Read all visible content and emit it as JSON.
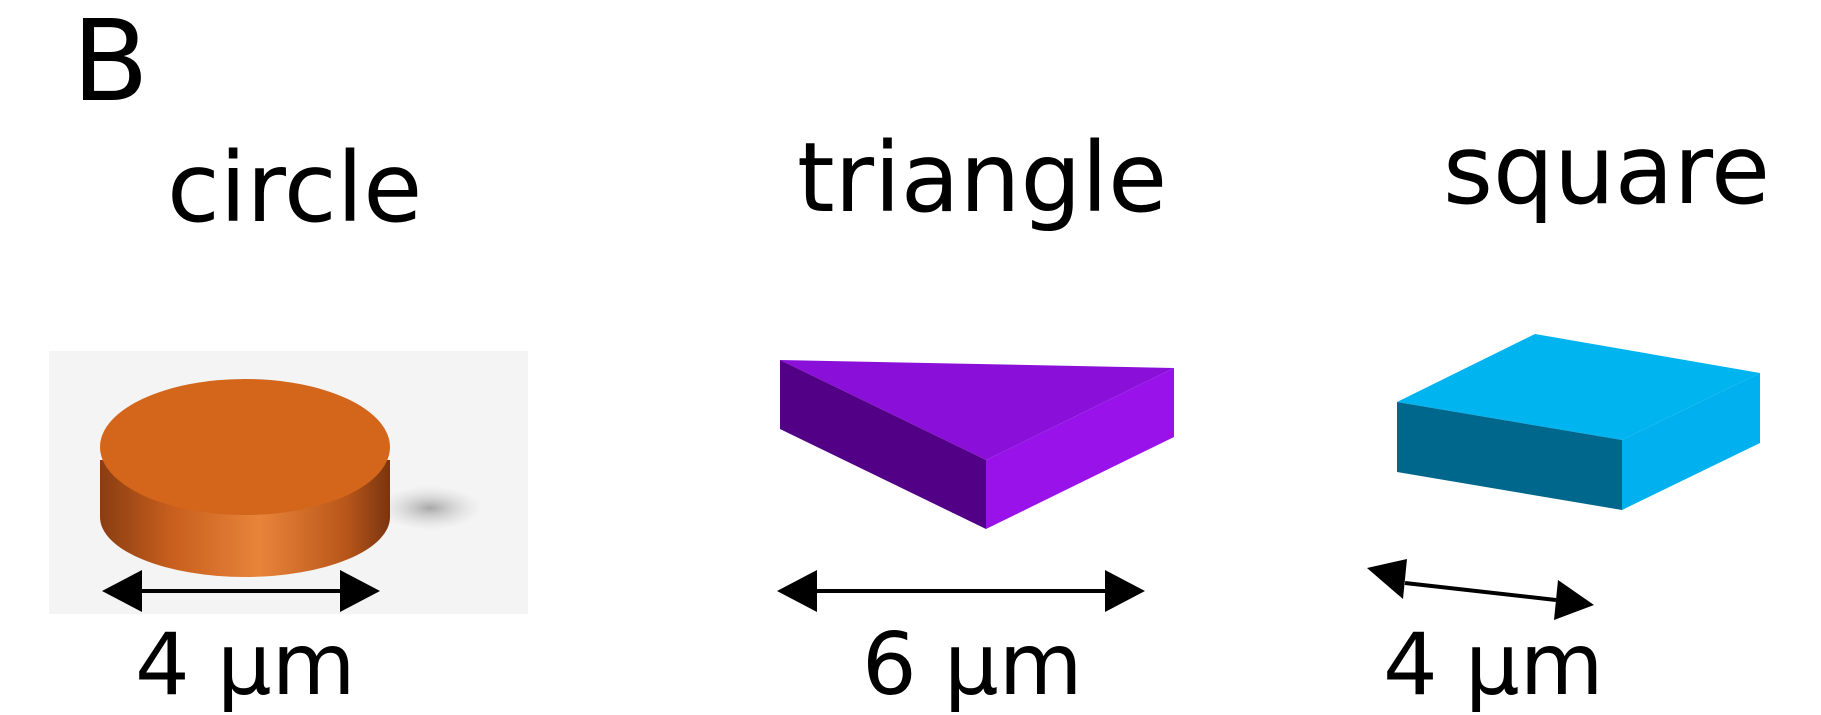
{
  "figure": {
    "panel_label": "B",
    "shapes": [
      {
        "name": "circle",
        "dimension": "4 μm",
        "color": "#d2691e"
      },
      {
        "name": "triangle",
        "dimension": "6 μm",
        "color": "#8a0fd8"
      },
      {
        "name": "square",
        "dimension": "4 μm",
        "color": "#00b4f0"
      }
    ]
  }
}
